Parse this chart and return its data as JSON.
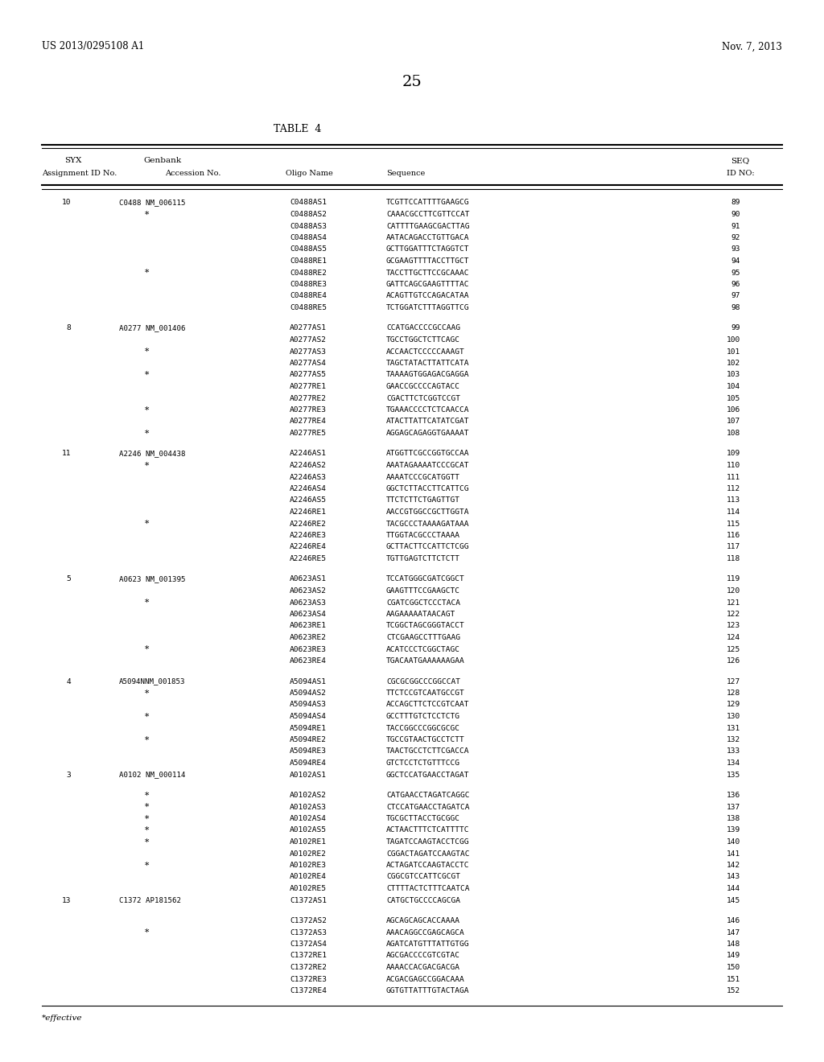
{
  "header_left": "US 2013/0295108 A1",
  "header_right": "Nov. 7, 2013",
  "page_number": "25",
  "table_title": "TABLE  4",
  "footer": "*effective",
  "rows": [
    {
      "syx": "10",
      "genbank": "C0488 NM_006115",
      "oligo": "C0488AS1",
      "sequence": "TCGTTCCATTTTGAAGCG",
      "seq_id": "89"
    },
    {
      "syx": "",
      "genbank": "*",
      "oligo": "C0488AS2",
      "sequence": "CAAACGCCTTCGTTCCAT",
      "seq_id": "90"
    },
    {
      "syx": "",
      "genbank": "",
      "oligo": "C0488AS3",
      "sequence": "CATTTTGAAGCGACTTAG",
      "seq_id": "91"
    },
    {
      "syx": "",
      "genbank": "",
      "oligo": "C0488AS4",
      "sequence": "AATACAGACCTGTTGACA",
      "seq_id": "92"
    },
    {
      "syx": "",
      "genbank": "",
      "oligo": "C0488AS5",
      "sequence": "GCTTGGATTTCTAGGTCT",
      "seq_id": "93"
    },
    {
      "syx": "",
      "genbank": "",
      "oligo": "C0488RE1",
      "sequence": "GCGAAGTTTTACCTTGCT",
      "seq_id": "94"
    },
    {
      "syx": "",
      "genbank": "*",
      "oligo": "C0488RE2",
      "sequence": "TACCTTGCTTCCGCAAAC",
      "seq_id": "95"
    },
    {
      "syx": "",
      "genbank": "",
      "oligo": "C0488RE3",
      "sequence": "GATTCAGCGAAGTTTTAC",
      "seq_id": "96"
    },
    {
      "syx": "",
      "genbank": "",
      "oligo": "C0488RE4",
      "sequence": "ACAGTTGTCCAGACATAA",
      "seq_id": "97"
    },
    {
      "syx": "",
      "genbank": "",
      "oligo": "C0488RE5",
      "sequence": "TCTGGATCTTTAGGTTCG",
      "seq_id": "98"
    },
    {
      "syx": "8",
      "genbank": "A0277 NM_001406",
      "oligo": "A0277AS1",
      "sequence": "CCATGACCCCGCCAAG",
      "seq_id": "99"
    },
    {
      "syx": "",
      "genbank": "",
      "oligo": "A0277AS2",
      "sequence": "TGCCTGGCTCTTCAGC",
      "seq_id": "100"
    },
    {
      "syx": "",
      "genbank": "*",
      "oligo": "A0277AS3",
      "sequence": "ACCAACTCCCCCAAAGT",
      "seq_id": "101"
    },
    {
      "syx": "",
      "genbank": "",
      "oligo": "A0277AS4",
      "sequence": "TAGCTATACTTATTCATA",
      "seq_id": "102"
    },
    {
      "syx": "",
      "genbank": "*",
      "oligo": "A0277AS5",
      "sequence": "TAAAAGTGGAGACGAGGA",
      "seq_id": "103"
    },
    {
      "syx": "",
      "genbank": "",
      "oligo": "A0277RE1",
      "sequence": "GAACCGCCCCAGTACC",
      "seq_id": "104"
    },
    {
      "syx": "",
      "genbank": "",
      "oligo": "A0277RE2",
      "sequence": "CGACTTCTCGGTCCGT",
      "seq_id": "105"
    },
    {
      "syx": "",
      "genbank": "*",
      "oligo": "A0277RE3",
      "sequence": "TGAAACCCCTCTCAACCA",
      "seq_id": "106"
    },
    {
      "syx": "",
      "genbank": "",
      "oligo": "A0277RE4",
      "sequence": "ATACTTATTCATATCGAT",
      "seq_id": "107"
    },
    {
      "syx": "",
      "genbank": "*",
      "oligo": "A0277RE5",
      "sequence": "AGGAGCAGAGGTGAAAAT",
      "seq_id": "108"
    },
    {
      "syx": "11",
      "genbank": "A2246 NM_004438",
      "oligo": "A2246AS1",
      "sequence": "ATGGTTCGCCGGTGCCAA",
      "seq_id": "109"
    },
    {
      "syx": "",
      "genbank": "*",
      "oligo": "A2246AS2",
      "sequence": "AAATAGAAAATCCCGCAT",
      "seq_id": "110"
    },
    {
      "syx": "",
      "genbank": "",
      "oligo": "A2246AS3",
      "sequence": "AAAATCCCGCATGGTT",
      "seq_id": "111"
    },
    {
      "syx": "",
      "genbank": "",
      "oligo": "A2246AS4",
      "sequence": "GGCTCTTACCTTCATTCG",
      "seq_id": "112"
    },
    {
      "syx": "",
      "genbank": "",
      "oligo": "A2246AS5",
      "sequence": "TTCTCTTCTGAGTTGT",
      "seq_id": "113"
    },
    {
      "syx": "",
      "genbank": "",
      "oligo": "A2246RE1",
      "sequence": "AACCGTGGCCGCTTGGTA",
      "seq_id": "114"
    },
    {
      "syx": "",
      "genbank": "*",
      "oligo": "A2246RE2",
      "sequence": "TACGCCCTAAAAGATAAA",
      "seq_id": "115"
    },
    {
      "syx": "",
      "genbank": "",
      "oligo": "A2246RE3",
      "sequence": "TTGGTACGCCCTAAAA",
      "seq_id": "116"
    },
    {
      "syx": "",
      "genbank": "",
      "oligo": "A2246RE4",
      "sequence": "GCTTACTTCCATTCTCGG",
      "seq_id": "117"
    },
    {
      "syx": "",
      "genbank": "",
      "oligo": "A2246RE5",
      "sequence": "TGTTGAGTCTTCTCTT",
      "seq_id": "118"
    },
    {
      "syx": "5",
      "genbank": "A0623 NM_001395",
      "oligo": "A0623AS1",
      "sequence": "TCCATGGGCGATCGGCT",
      "seq_id": "119"
    },
    {
      "syx": "",
      "genbank": "",
      "oligo": "A0623AS2",
      "sequence": "GAAGTTTCCGAAGCTC",
      "seq_id": "120"
    },
    {
      "syx": "",
      "genbank": "*",
      "oligo": "A0623AS3",
      "sequence": "CGATCGGCTCCCTACA",
      "seq_id": "121"
    },
    {
      "syx": "",
      "genbank": "",
      "oligo": "A0623AS4",
      "sequence": "AAGAAAAATAACAGT",
      "seq_id": "122"
    },
    {
      "syx": "",
      "genbank": "",
      "oligo": "A0623RE1",
      "sequence": "TCGGCTAGCGGGTACCT",
      "seq_id": "123"
    },
    {
      "syx": "",
      "genbank": "",
      "oligo": "A0623RE2",
      "sequence": "CTCGAAGCCTTTGAAG",
      "seq_id": "124"
    },
    {
      "syx": "",
      "genbank": "*",
      "oligo": "A0623RE3",
      "sequence": "ACATCCCTCGGCTAGC",
      "seq_id": "125"
    },
    {
      "syx": "",
      "genbank": "",
      "oligo": "A0623RE4",
      "sequence": "TGACAATGAAAAAAGAA",
      "seq_id": "126"
    },
    {
      "syx": "4",
      "genbank": "A5094NNM_001853",
      "oligo": "A5094AS1",
      "sequence": "CGCGCGGCCCGGCCAT",
      "seq_id": "127"
    },
    {
      "syx": "",
      "genbank": "*",
      "oligo": "A5094AS2",
      "sequence": "TTCTCCGTCAATGCCGT",
      "seq_id": "128"
    },
    {
      "syx": "",
      "genbank": "",
      "oligo": "A5094AS3",
      "sequence": "ACCAGCTTCTCCGTCAAT",
      "seq_id": "129"
    },
    {
      "syx": "",
      "genbank": "*",
      "oligo": "A5094AS4",
      "sequence": "GCCTTTGTCTCCTCTG",
      "seq_id": "130"
    },
    {
      "syx": "",
      "genbank": "",
      "oligo": "A5094RE1",
      "sequence": "TACCGGCCCGGCGCGC",
      "seq_id": "131"
    },
    {
      "syx": "",
      "genbank": "*",
      "oligo": "A5094RE2",
      "sequence": "TGCCGTAACTGCCTCTT",
      "seq_id": "132"
    },
    {
      "syx": "",
      "genbank": "",
      "oligo": "A5094RE3",
      "sequence": "TAACTGCCTCTTCGACCA",
      "seq_id": "133"
    },
    {
      "syx": "",
      "genbank": "",
      "oligo": "A5094RE4",
      "sequence": "GTCTCCTCTGTTTCCG",
      "seq_id": "134"
    },
    {
      "syx": "3",
      "genbank": "A0102 NM_000114",
      "oligo": "A0102AS1",
      "sequence": "GGCTCCATGAACCTAGAT",
      "seq_id": "135"
    },
    {
      "syx": "",
      "genbank": "*",
      "oligo": "A0102AS2",
      "sequence": "CATGAACCTAGATCAGGC",
      "seq_id": "136"
    },
    {
      "syx": "",
      "genbank": "*",
      "oligo": "A0102AS3",
      "sequence": "CTCCATGAACCTAGATCA",
      "seq_id": "137"
    },
    {
      "syx": "",
      "genbank": "*",
      "oligo": "A0102AS4",
      "sequence": "TGCGCTTACCTGCGGC",
      "seq_id": "138"
    },
    {
      "syx": "",
      "genbank": "*",
      "oligo": "A0102AS5",
      "sequence": "ACTAACTTTCTCATTTTC",
      "seq_id": "139"
    },
    {
      "syx": "",
      "genbank": "*",
      "oligo": "A0102RE1",
      "sequence": "TAGATCCAAGTACCTCGG",
      "seq_id": "140"
    },
    {
      "syx": "",
      "genbank": "",
      "oligo": "A0102RE2",
      "sequence": "CGGACTAGATCCAAGTAC",
      "seq_id": "141"
    },
    {
      "syx": "",
      "genbank": "*",
      "oligo": "A0102RE3",
      "sequence": "ACTAGATCCAAGTACCTC",
      "seq_id": "142"
    },
    {
      "syx": "",
      "genbank": "",
      "oligo": "A0102RE4",
      "sequence": "CGGCGTCCATTCGCGT",
      "seq_id": "143"
    },
    {
      "syx": "",
      "genbank": "",
      "oligo": "A0102RE5",
      "sequence": "CTTTTACTCTTTCAATCA",
      "seq_id": "144"
    },
    {
      "syx": "13",
      "genbank": "C1372 AP181562",
      "oligo": "C1372AS1",
      "sequence": "CATGCTGCCCCAGCGA",
      "seq_id": "145"
    },
    {
      "syx": "",
      "genbank": "",
      "oligo": "C1372AS2",
      "sequence": "AGCAGCAGCACCAAAA",
      "seq_id": "146"
    },
    {
      "syx": "",
      "genbank": "*",
      "oligo": "C1372AS3",
      "sequence": "AAACAGGCCGAGCAGCA",
      "seq_id": "147"
    },
    {
      "syx": "",
      "genbank": "",
      "oligo": "C1372AS4",
      "sequence": "AGATCATGTTTATTGTGG",
      "seq_id": "148"
    },
    {
      "syx": "",
      "genbank": "",
      "oligo": "C1372RE1",
      "sequence": "AGCGACCCCGTCGTAC",
      "seq_id": "149"
    },
    {
      "syx": "",
      "genbank": "",
      "oligo": "C1372RE2",
      "sequence": "AAAACCACGACGACGA",
      "seq_id": "150"
    },
    {
      "syx": "",
      "genbank": "",
      "oligo": "C1372RE3",
      "sequence": "ACGACGAGCCGGACAAA",
      "seq_id": "151"
    },
    {
      "syx": "",
      "genbank": "",
      "oligo": "C1372RE4",
      "sequence": "GGTGTTATTTGTACTAGA",
      "seq_id": "152"
    }
  ],
  "group_breaks": [
    9,
    19,
    29,
    37,
    46,
    56
  ],
  "background_color": "#ffffff"
}
